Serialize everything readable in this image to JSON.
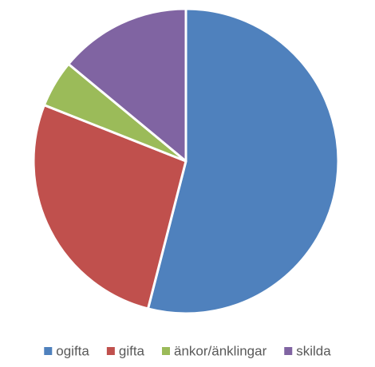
{
  "chart_data": {
    "type": "pie",
    "categories": [
      "ogifta",
      "gifta",
      "änkor/änklingar",
      "skilda"
    ],
    "values": [
      54,
      27,
      5,
      14
    ],
    "colors": [
      "#4f81bd",
      "#c0504d",
      "#9bbb59",
      "#8064a2"
    ],
    "legend": "bottom"
  }
}
